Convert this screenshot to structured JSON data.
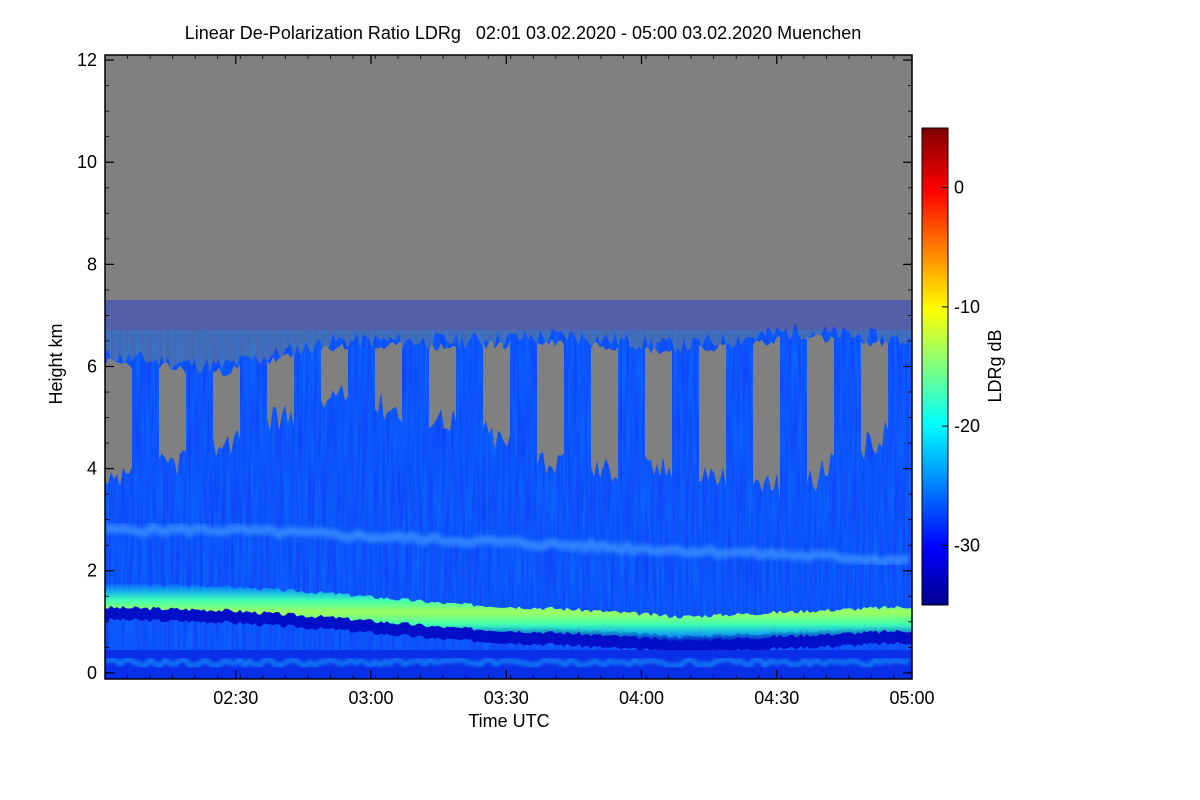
{
  "chart_data": {
    "type": "heatmap",
    "title": "Linear De-Polarization Ratio LDRg   02:01 03.02.2020 - 05:00 03.02.2020 Muenchen",
    "xlabel": "Time UTC",
    "ylabel": "Height km",
    "x_ticks": [
      "02:30",
      "03:00",
      "03:30",
      "04:00",
      "04:30",
      "05:00"
    ],
    "x_range": [
      "02:01",
      "05:00"
    ],
    "y_ticks": [
      0,
      2,
      4,
      6,
      8,
      10,
      12
    ],
    "ylim": [
      -0.12,
      12.1
    ],
    "colorbar": {
      "label": "LDRg dB",
      "ticks": [
        0,
        -10,
        -20,
        -30
      ],
      "range": [
        -35,
        5
      ],
      "colormap": [
        "#00008f",
        "#0000ff",
        "#00ffff",
        "#ffff00",
        "#ff0000",
        "#800000"
      ]
    },
    "no_data_color": "#808080",
    "features": {
      "signal_top_km": [
        6.2,
        6.0,
        6.5,
        6.5,
        6.6,
        6.4,
        6.7,
        6.5
      ],
      "gap_top_km": [
        3.6,
        4.5,
        5.4,
        5.0,
        4.0,
        4.0,
        3.6,
        5.0
      ],
      "boundary_layer_top_km": [
        1.75,
        1.7,
        1.55,
        1.35,
        1.25,
        1.1,
        1.2,
        1.3
      ],
      "elevated_layer_km": [
        2.8,
        2.8,
        2.7,
        2.6,
        2.5,
        2.4,
        2.3,
        2.2
      ],
      "boundary_layer_ldr_db": -18,
      "background_ldr_db": -30
    }
  }
}
